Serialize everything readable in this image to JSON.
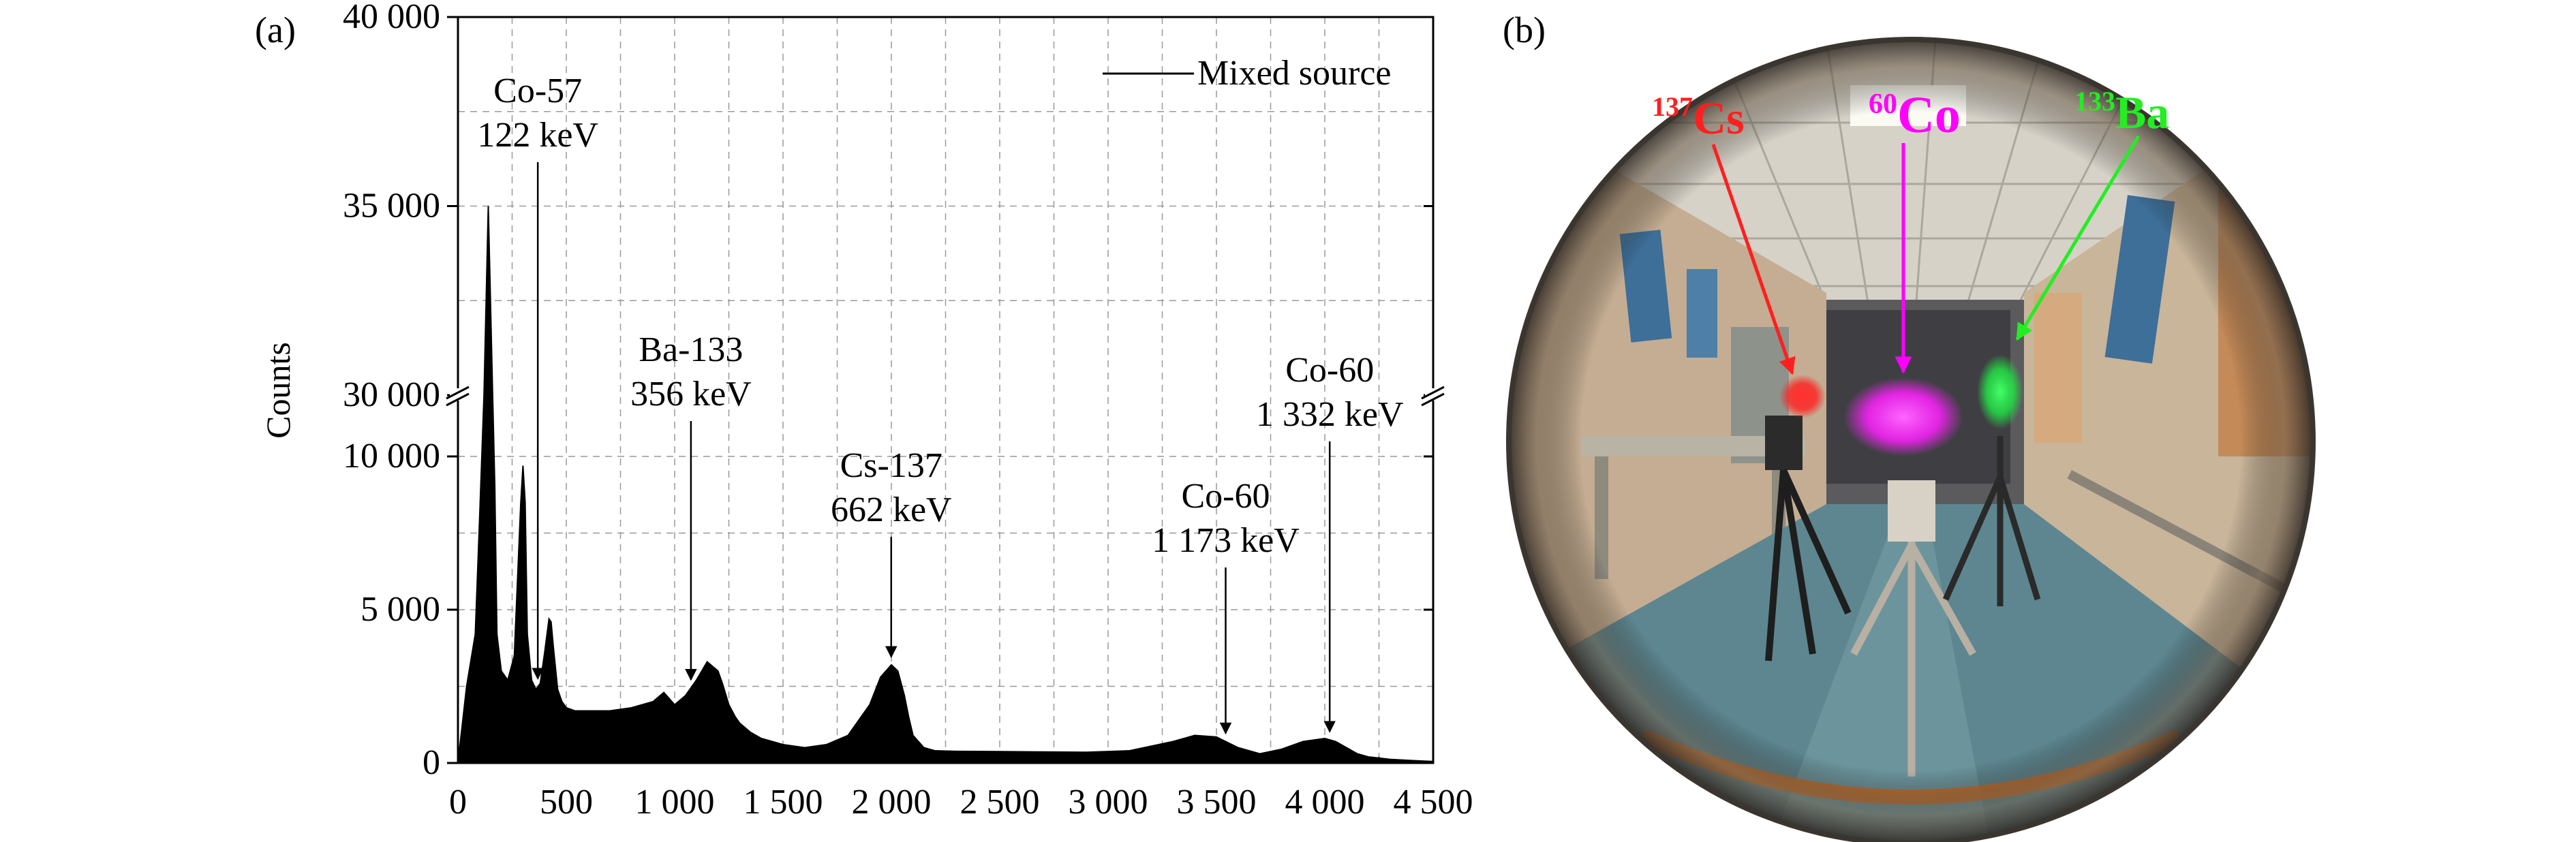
{
  "panel_a_label": "(a)",
  "panel_b_label": "(b)",
  "chart_data": {
    "type": "line",
    "ylabel": "Counts",
    "xlabel": "",
    "xlim": [
      0,
      4500
    ],
    "x_ticks": [
      "0",
      "500",
      "1 000",
      "1 500",
      "2 000",
      "2 500",
      "3 000",
      "3 500",
      "4 000",
      "4 500"
    ],
    "x_tick_values": [
      0,
      500,
      1000,
      1500,
      2000,
      2500,
      3000,
      3500,
      4000,
      4500
    ],
    "y_axis_break": true,
    "y_lower_range": [
      0,
      12000
    ],
    "y_upper_range": [
      30000,
      40000
    ],
    "y_ticks": [
      "0",
      "5 000",
      "10 000",
      "30 000",
      "35 000",
      "40 000"
    ],
    "y_tick_values": [
      0,
      5000,
      10000,
      30000,
      35000,
      40000
    ],
    "grid": true,
    "legend_position": "top-right",
    "series": [
      {
        "name": "Mixed source",
        "color": "#000000",
        "x": [
          0,
          40,
          80,
          100,
          120,
          140,
          160,
          170,
          180,
          200,
          230,
          260,
          290,
          300,
          310,
          320,
          340,
          360,
          380,
          400,
          420,
          430,
          440,
          460,
          480,
          500,
          540,
          600,
          700,
          800,
          900,
          950,
          1000,
          1050,
          1100,
          1150,
          1200,
          1220,
          1250,
          1280,
          1300,
          1350,
          1400,
          1500,
          1600,
          1700,
          1800,
          1900,
          1950,
          2000,
          2030,
          2060,
          2080,
          2100,
          2150,
          2200,
          2300,
          2500,
          2700,
          2900,
          3100,
          3300,
          3400,
          3500,
          3600,
          3700,
          3800,
          3900,
          4000,
          4050,
          4100,
          4150,
          4200,
          4300,
          4400,
          4500
        ],
        "y": [
          0,
          2500,
          4200,
          8000,
          29500,
          35000,
          24000,
          9000,
          4200,
          3000,
          2700,
          3500,
          8500,
          9700,
          8500,
          4200,
          2700,
          2400,
          2600,
          3600,
          4700,
          4600,
          3800,
          2400,
          2000,
          1800,
          1700,
          1700,
          1700,
          1800,
          2000,
          2300,
          1900,
          2200,
          2700,
          3300,
          3000,
          2600,
          1900,
          1500,
          1300,
          1000,
          800,
          600,
          500,
          600,
          900,
          1900,
          2800,
          3200,
          3000,
          2200,
          1500,
          900,
          500,
          400,
          380,
          370,
          360,
          350,
          400,
          700,
          900,
          850,
          500,
          300,
          450,
          700,
          800,
          700,
          500,
          300,
          200,
          120,
          80,
          50
        ]
      }
    ],
    "annotations": [
      {
        "line1": "Co-57",
        "line2": "122 keV",
        "x": 122
      },
      {
        "line1": "Ba-133",
        "line2": "356 keV",
        "x": 356
      },
      {
        "line1": "Cs-137",
        "line2": "662 keV",
        "x": 662
      },
      {
        "line1": "Co-60",
        "line2": "1 173 keV",
        "x": 1173
      },
      {
        "line1": "Co-60",
        "line2": "1 332 keV",
        "x": 1332
      }
    ]
  },
  "photo": {
    "labels": [
      {
        "sup": "137",
        "text": "Cs",
        "color": "#ff1f1f"
      },
      {
        "sup": "60",
        "text": "Co",
        "color": "#ff00ff"
      },
      {
        "sup": "133",
        "text": "Ba",
        "color": "#22ee22"
      }
    ]
  }
}
